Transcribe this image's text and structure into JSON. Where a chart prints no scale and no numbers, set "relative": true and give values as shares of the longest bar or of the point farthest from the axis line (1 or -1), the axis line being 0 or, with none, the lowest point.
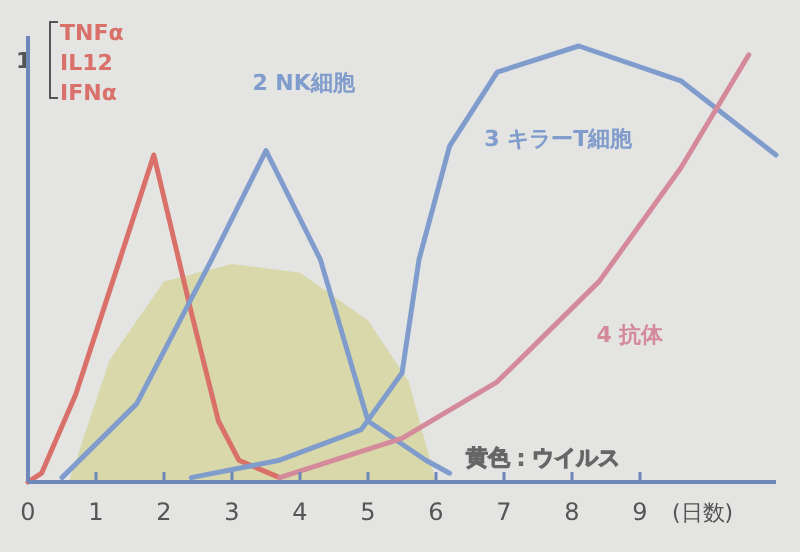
{
  "chart_data": {
    "type": "line",
    "relative": true,
    "xlabel": "(日数)",
    "xlim": [
      0,
      11
    ],
    "xticks": [
      0,
      1,
      2,
      3,
      4,
      5,
      6,
      7,
      8,
      9
    ],
    "line_style": "solid",
    "annotations": [
      "1"
    ],
    "series": [
      {
        "type": "area",
        "name": "黄色：ウイルス",
        "color": "#d6d6a4",
        "x": [
          0.6,
          1.2,
          2,
          3,
          4,
          5,
          5.6,
          6.0
        ],
        "values": [
          0,
          0.28,
          0.46,
          0.5,
          0.48,
          0.37,
          0.23,
          0
        ]
      },
      {
        "name": "TNFα\nIL12\nIFNα",
        "color": "#d9706a",
        "x": [
          0,
          0.2,
          0.7,
          1.35,
          1.85,
          2.4,
          2.8,
          3.1,
          3.7
        ],
        "values": [
          0,
          0.02,
          0.2,
          0.51,
          0.75,
          0.39,
          0.14,
          0.05,
          0.01
        ]
      },
      {
        "name": "2 NK細胞",
        "color": "#7f9ccc",
        "x": [
          0.5,
          1.6,
          2.7,
          3.5,
          4.3,
          5.0,
          5.85,
          6.2
        ],
        "values": [
          0.01,
          0.18,
          0.51,
          0.76,
          0.51,
          0.14,
          0.05,
          0.02
        ]
      },
      {
        "name": "3 キラーT細胞",
        "color": "#7f9ccc",
        "x": [
          2.4,
          3.7,
          4.9,
          5.5,
          5.75,
          6.2,
          6.9,
          8.1,
          9.6,
          11
        ],
        "values": [
          0.01,
          0.05,
          0.12,
          0.25,
          0.51,
          0.77,
          0.94,
          1,
          0.92,
          0.75
        ]
      },
      {
        "name": "4 抗体",
        "color": "#d48a9a",
        "x": [
          3.7,
          5.5,
          6.9,
          8.4,
          9.6,
          10.6
        ],
        "values": [
          0.01,
          0.1,
          0.23,
          0.46,
          0.72,
          0.98
        ]
      }
    ]
  }
}
